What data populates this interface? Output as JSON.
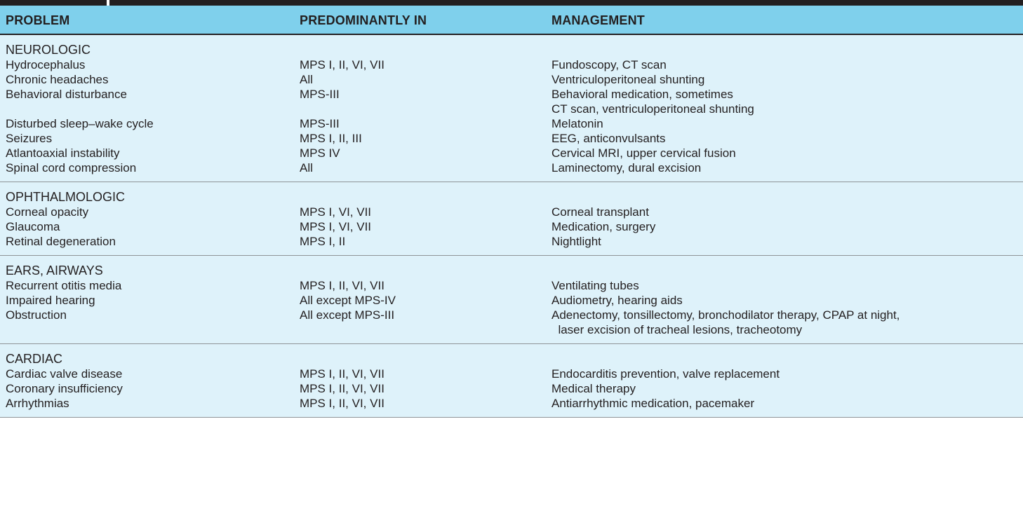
{
  "header": {
    "col1": "PROBLEM",
    "col2": "PREDOMINANTLY IN",
    "col3": "MANAGEMENT"
  },
  "sections": [
    {
      "title": "NEUROLOGIC",
      "rows": [
        {
          "problem": "Hydrocephalus",
          "predominantly_in": "MPS I, II, VI, VII",
          "management": [
            "Fundoscopy, CT scan"
          ]
        },
        {
          "problem": "Chronic headaches",
          "predominantly_in": "All",
          "management": [
            "Ventriculoperitoneal shunting"
          ]
        },
        {
          "problem": "Behavioral disturbance",
          "predominantly_in": "MPS-III",
          "management": [
            "Behavioral medication, sometimes",
            "CT scan, ventriculoperitoneal shunting"
          ]
        },
        {
          "problem": "Disturbed sleep–wake cycle",
          "predominantly_in": "MPS-III",
          "management": [
            "Melatonin"
          ]
        },
        {
          "problem": "Seizures",
          "predominantly_in": "MPS I, II, III",
          "management": [
            "EEG, anticonvulsants"
          ]
        },
        {
          "problem": "Atlantoaxial instability",
          "predominantly_in": "MPS IV",
          "management": [
            "Cervical MRI, upper cervical fusion"
          ]
        },
        {
          "problem": "Spinal cord compression",
          "predominantly_in": "All",
          "management": [
            "Laminectomy, dural excision"
          ]
        }
      ]
    },
    {
      "title": "OPHTHALMOLOGIC",
      "rows": [
        {
          "problem": "Corneal opacity",
          "predominantly_in": "MPS I, VI, VII",
          "management": [
            "Corneal transplant"
          ]
        },
        {
          "problem": "Glaucoma",
          "predominantly_in": "MPS I, VI, VII",
          "management": [
            "Medication, surgery"
          ]
        },
        {
          "problem": "Retinal degeneration",
          "predominantly_in": "MPS I, II",
          "management": [
            "Nightlight"
          ]
        }
      ]
    },
    {
      "title": "EARS, AIRWAYS",
      "rows": [
        {
          "problem": "Recurrent otitis media",
          "predominantly_in": "MPS I, II, VI, VII",
          "management": [
            "Ventilating tubes"
          ]
        },
        {
          "problem": "Impaired hearing",
          "predominantly_in": "All except MPS-IV",
          "management": [
            "Audiometry, hearing aids"
          ]
        },
        {
          "problem": "Obstruction",
          "predominantly_in": "All except MPS-III",
          "management": [
            "Adenectomy, tonsillectomy, bronchodilator therapy, CPAP at night,",
            "  laser excision of tracheal lesions, tracheotomy"
          ]
        }
      ]
    },
    {
      "title": "CARDIAC",
      "rows": [
        {
          "problem": "Cardiac valve disease",
          "predominantly_in": "MPS I, II, VI, VII",
          "management": [
            "Endocarditis prevention, valve replacement"
          ]
        },
        {
          "problem": "Coronary insufficiency",
          "predominantly_in": "MPS I, II, VI, VII",
          "management": [
            "Medical therapy"
          ]
        },
        {
          "problem": "Arrhythmias",
          "predominantly_in": "MPS I, II, VI, VII",
          "management": [
            "Antiarrhythmic medication, pacemaker"
          ]
        }
      ]
    }
  ]
}
